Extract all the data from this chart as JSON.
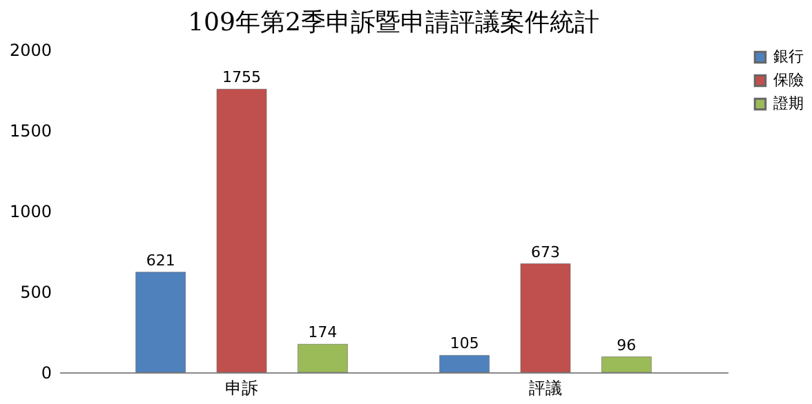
{
  "chart_data": {
    "type": "bar",
    "title": "109年第2季申訴暨申請評議案件統計",
    "categories": [
      "申訴",
      "評議"
    ],
    "series": [
      {
        "name": "銀行",
        "color": "#4f81bd",
        "values": [
          621,
          105
        ]
      },
      {
        "name": "保險",
        "color": "#c0504d",
        "values": [
          1755,
          673
        ]
      },
      {
        "name": "證期",
        "color": "#9bbb59",
        "values": [
          174,
          96
        ]
      }
    ],
    "ylim": [
      0,
      2000
    ],
    "yticks": [
      0,
      500,
      1000,
      1500,
      2000
    ],
    "grid": false,
    "legend": "right",
    "data_labels": true
  }
}
